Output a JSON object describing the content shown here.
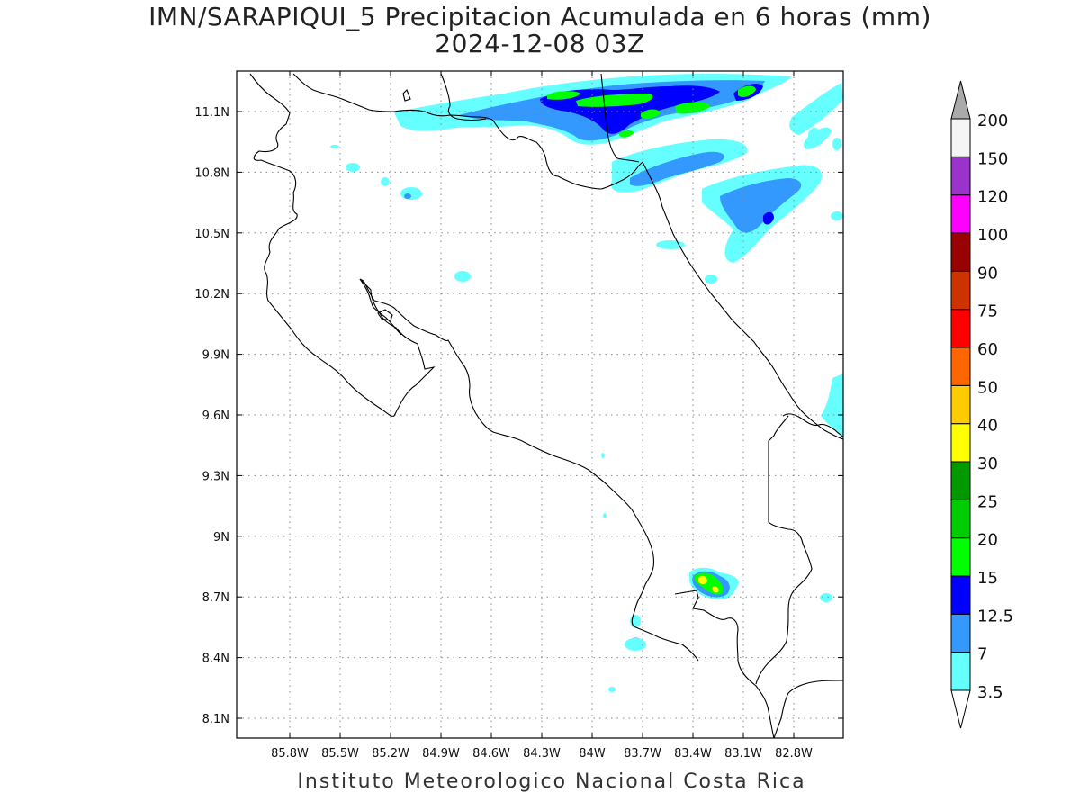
{
  "title_line1": "IMN/SARAPIQUI_5 Precipitacion Acumulada en 6 horas (mm)",
  "title_line2": "2024-12-08 03Z",
  "footer": "Instituto Meteorologico Nacional Costa Rica",
  "map": {
    "lat_ticks": [
      "11.1N",
      "10.8N",
      "10.5N",
      "10.2N",
      "9.9N",
      "9.6N",
      "9.3N",
      "9N",
      "8.7N",
      "8.4N",
      "8.1N"
    ],
    "lon_ticks": [
      "85.8W",
      "85.5W",
      "85.2W",
      "84.9W",
      "84.6W",
      "84.3W",
      "84W",
      "83.7W",
      "83.4W",
      "83.1W",
      "82.8W"
    ],
    "lat_values": [
      11.1,
      10.8,
      10.5,
      10.2,
      9.9,
      9.6,
      9.3,
      9.0,
      8.7,
      8.4,
      8.1
    ],
    "lon_values": [
      -85.8,
      -85.5,
      -85.2,
      -84.9,
      -84.6,
      -84.3,
      -84.0,
      -83.7,
      -83.4,
      -83.1,
      -82.8
    ]
  },
  "legend": {
    "levels": [
      "3.5",
      "7",
      "12.5",
      "15",
      "20",
      "25",
      "30",
      "40",
      "50",
      "60",
      "75",
      "90",
      "100",
      "120",
      "150",
      "200"
    ],
    "colors": [
      "#66ffff",
      "#3399ff",
      "#0000ff",
      "#00ff00",
      "#00cc00",
      "#009900",
      "#ffff00",
      "#ffcc00",
      "#ff6600",
      "#ff0000",
      "#cc3300",
      "#990000",
      "#ff00ff",
      "#9933cc",
      "#f5f5f5"
    ],
    "under_color": "#ffffff",
    "over_color": "#aaaaaa"
  }
}
